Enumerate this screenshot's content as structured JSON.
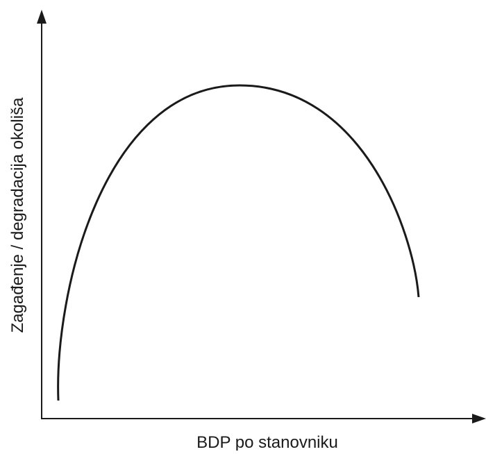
{
  "x_axis": {
    "label": "BDP po stanovniku"
  },
  "y_axis": {
    "label": "Zagađenje / degradacija okoliša"
  }
}
